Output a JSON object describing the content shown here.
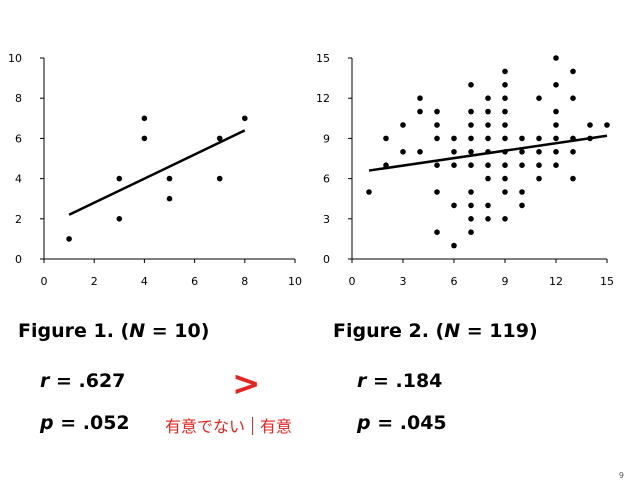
{
  "chart_data": [
    {
      "type": "scatter",
      "title": "",
      "xlabel": "",
      "ylabel": "",
      "xlim": [
        0,
        10
      ],
      "ylim": [
        0,
        10
      ],
      "xticks": [
        0,
        2,
        4,
        6,
        8,
        10
      ],
      "yticks": [
        0,
        2,
        4,
        6,
        8,
        10
      ],
      "grid": false,
      "points": [
        [
          1,
          1
        ],
        [
          3,
          2
        ],
        [
          3,
          4
        ],
        [
          4,
          6
        ],
        [
          4,
          7
        ],
        [
          5,
          3
        ],
        [
          5,
          4
        ],
        [
          7,
          4
        ],
        [
          7,
          6
        ],
        [
          8,
          7
        ]
      ],
      "trendline": {
        "x": [
          1,
          8
        ],
        "y": [
          2.2,
          6.4
        ]
      }
    },
    {
      "type": "scatter",
      "title": "",
      "xlabel": "",
      "ylabel": "",
      "xlim": [
        0,
        15
      ],
      "ylim": [
        0,
        15
      ],
      "xticks": [
        0,
        3,
        6,
        9,
        12,
        15
      ],
      "yticks": [
        0,
        3,
        6,
        9,
        12,
        15
      ],
      "grid": false,
      "points": [
        [
          1,
          5
        ],
        [
          2,
          7
        ],
        [
          2,
          9
        ],
        [
          3,
          8
        ],
        [
          3,
          10
        ],
        [
          4,
          8
        ],
        [
          4,
          11
        ],
        [
          4,
          12
        ],
        [
          5,
          5
        ],
        [
          5,
          7
        ],
        [
          5,
          9
        ],
        [
          5,
          10
        ],
        [
          5,
          11
        ],
        [
          5,
          2
        ],
        [
          6,
          1
        ],
        [
          6,
          4
        ],
        [
          6,
          7
        ],
        [
          6,
          8
        ],
        [
          6,
          9
        ],
        [
          7,
          2
        ],
        [
          7,
          3
        ],
        [
          7,
          4
        ],
        [
          7,
          5
        ],
        [
          7,
          7
        ],
        [
          7,
          8
        ],
        [
          7,
          9
        ],
        [
          7,
          10
        ],
        [
          7,
          11
        ],
        [
          7,
          13
        ],
        [
          8,
          3
        ],
        [
          8,
          4
        ],
        [
          8,
          6
        ],
        [
          8,
          7
        ],
        [
          8,
          8
        ],
        [
          8,
          9
        ],
        [
          8,
          10
        ],
        [
          8,
          11
        ],
        [
          8,
          12
        ],
        [
          9,
          3
        ],
        [
          9,
          5
        ],
        [
          9,
          6
        ],
        [
          9,
          7
        ],
        [
          9,
          8
        ],
        [
          9,
          9
        ],
        [
          9,
          10
        ],
        [
          9,
          11
        ],
        [
          9,
          12
        ],
        [
          9,
          13
        ],
        [
          9,
          14
        ],
        [
          10,
          4
        ],
        [
          10,
          5
        ],
        [
          10,
          7
        ],
        [
          10,
          8
        ],
        [
          10,
          9
        ],
        [
          11,
          6
        ],
        [
          11,
          7
        ],
        [
          11,
          8
        ],
        [
          11,
          9
        ],
        [
          11,
          12
        ],
        [
          12,
          7
        ],
        [
          12,
          8
        ],
        [
          12,
          9
        ],
        [
          12,
          10
        ],
        [
          12,
          11
        ],
        [
          12,
          13
        ],
        [
          12,
          15
        ],
        [
          13,
          6
        ],
        [
          13,
          8
        ],
        [
          13,
          9
        ],
        [
          13,
          12
        ],
        [
          13,
          14
        ],
        [
          14,
          9
        ],
        [
          14,
          10
        ],
        [
          15,
          10
        ]
      ],
      "trendline": {
        "x": [
          1,
          15
        ],
        "y": [
          6.6,
          9.2
        ]
      }
    }
  ],
  "captions": {
    "fig1_prefix": "Figure 1. (",
    "fig1_n": "N",
    "fig1_suffix": " = 10)",
    "fig2_prefix": "Figure 2. (",
    "fig2_n": "N",
    "fig2_suffix": " = 119)"
  },
  "stats": {
    "r_symbol": "r",
    "r1_value": " = .627",
    "r2_value": " = .184",
    "p_symbol": "p",
    "p1_value": " = .052",
    "p2_value": " = .045",
    "greater_than": ">",
    "not_significant": "有意でない",
    "significant": "有意"
  },
  "page_number": "9",
  "colors": {
    "accent_red": "#e8231f",
    "ink": "#000000"
  }
}
